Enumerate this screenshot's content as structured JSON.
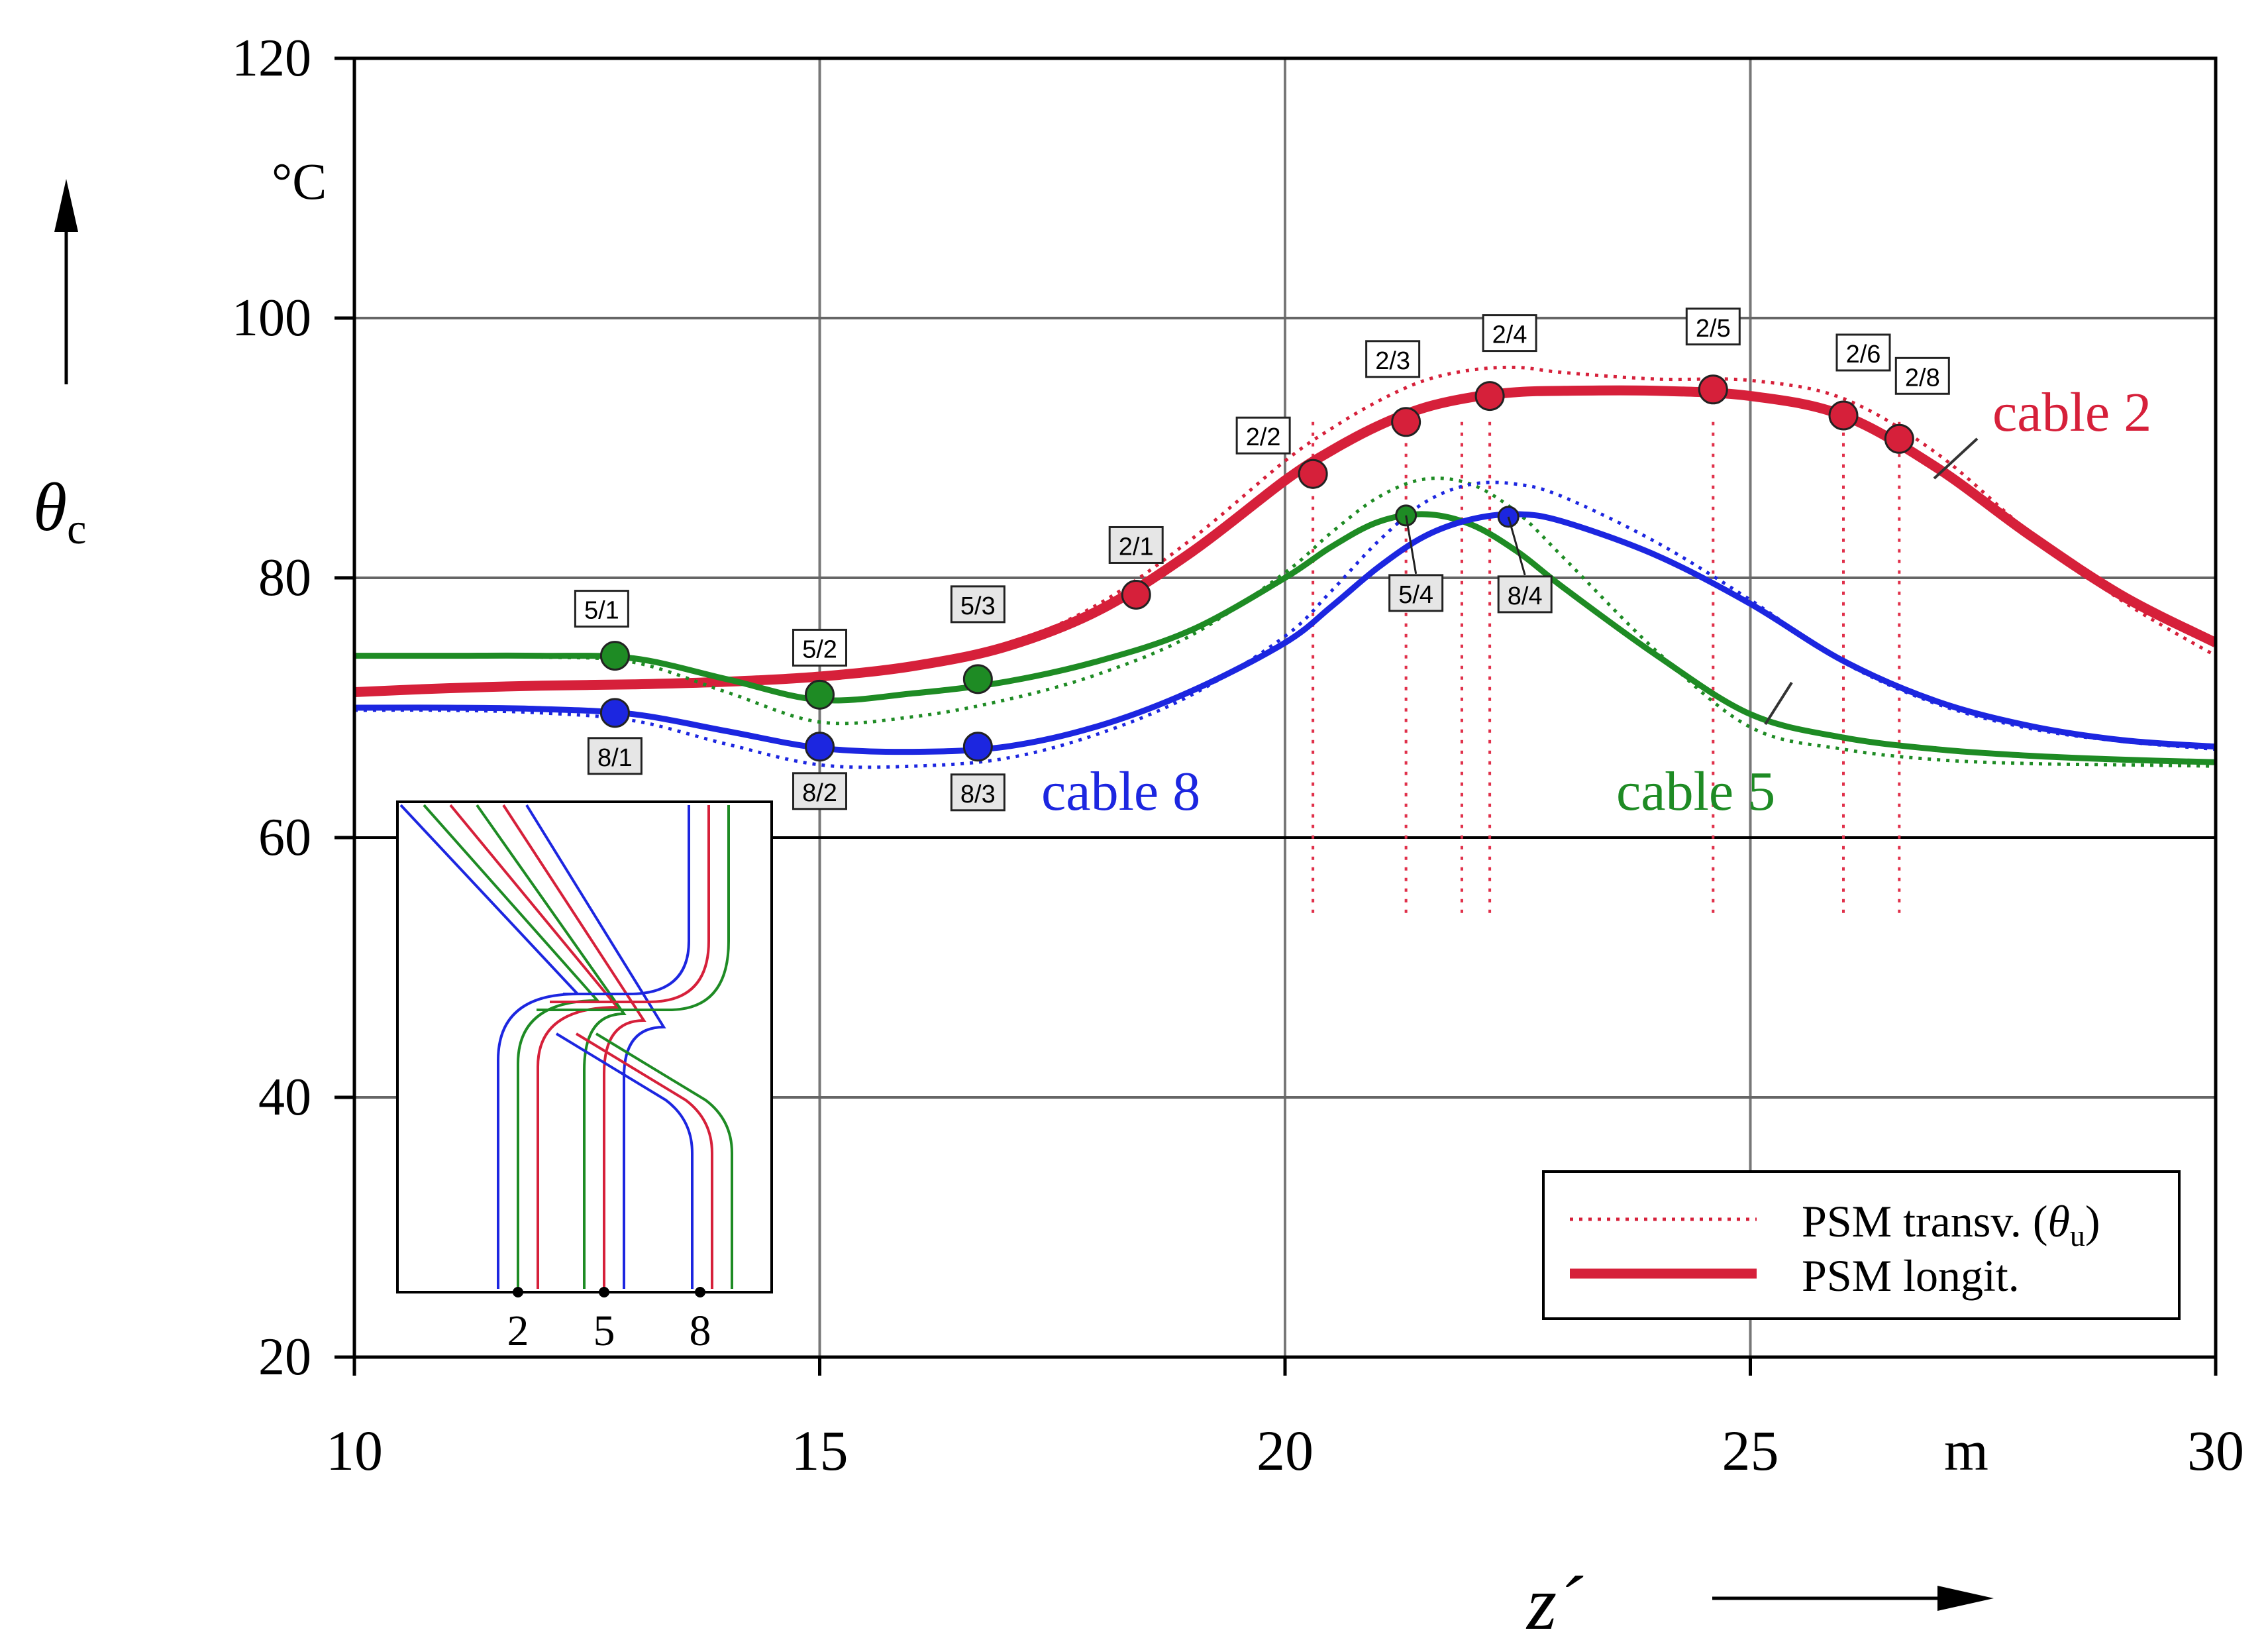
{
  "chart_data": {
    "type": "line",
    "x": [
      10,
      11,
      12,
      13,
      14,
      15,
      16,
      17,
      18,
      19,
      20,
      20.5,
      21,
      21.5,
      22,
      22.5,
      23,
      24,
      25,
      26,
      27,
      28,
      29,
      30
    ],
    "series": [
      {
        "name": "cable 2",
        "color": "#d6203a",
        "longit": [
          71.2,
          71.5,
          71.7,
          71.8,
          72.0,
          72.4,
          73.2,
          74.7,
          77.5,
          82.0,
          87.5,
          89.8,
          91.7,
          93.1,
          93.9,
          94.3,
          94.4,
          94.4,
          94.0,
          92.5,
          88.5,
          83.3,
          78.6,
          75.0
        ],
        "transv": [
          71.0,
          71.3,
          71.5,
          71.6,
          71.8,
          72.2,
          73.1,
          74.8,
          78.0,
          83.0,
          89.0,
          91.5,
          93.6,
          95.2,
          96.0,
          96.2,
          95.8,
          95.3,
          95.2,
          93.8,
          89.6,
          83.5,
          78.2,
          74.0
        ]
      },
      {
        "name": "cable 5",
        "color": "#1e8b24",
        "longit": [
          74.0,
          74.0,
          74.0,
          73.8,
          72.2,
          70.6,
          71.1,
          72.0,
          73.6,
          76.0,
          80.0,
          82.4,
          84.3,
          84.9,
          84.1,
          82.0,
          79.2,
          74.0,
          69.5,
          67.7,
          66.8,
          66.3,
          66.0,
          65.8
        ],
        "transv": [
          74.0,
          74.0,
          73.9,
          73.5,
          71.2,
          68.9,
          69.3,
          70.6,
          72.6,
          75.6,
          80.4,
          83.5,
          86.2,
          87.6,
          87.2,
          85.0,
          81.5,
          74.3,
          68.5,
          66.8,
          66.0,
          65.7,
          65.6,
          65.5
        ]
      },
      {
        "name": "cable 8",
        "color": "#1c26e0",
        "longit": [
          70.0,
          70.0,
          69.9,
          69.5,
          68.2,
          66.9,
          66.6,
          67.0,
          68.6,
          71.3,
          75.0,
          77.8,
          80.8,
          83.2,
          84.5,
          84.9,
          84.3,
          81.7,
          78.0,
          73.6,
          70.5,
          68.6,
          67.5,
          67.0
        ],
        "transv": [
          69.8,
          69.8,
          69.6,
          69.0,
          67.2,
          65.6,
          65.5,
          66.1,
          68.0,
          71.0,
          75.5,
          79.0,
          82.8,
          85.8,
          87.2,
          87.2,
          86.2,
          82.7,
          78.3,
          73.5,
          70.3,
          68.4,
          67.4,
          66.8
        ]
      }
    ],
    "markers": [
      {
        "label": "2/1",
        "series": 0,
        "x": 18.4,
        "y": 78.7
      },
      {
        "label": "2/2",
        "series": 0,
        "x": 20.3,
        "y": 88.0
      },
      {
        "label": "2/3",
        "series": 0,
        "x": 21.3,
        "y": 92.0
      },
      {
        "label": "2/4",
        "series": 0,
        "x": 22.2,
        "y": 94.0
      },
      {
        "label": "2/5",
        "series": 0,
        "x": 24.6,
        "y": 94.5
      },
      {
        "label": "2/6",
        "series": 0,
        "x": 26.0,
        "y": 92.5
      },
      {
        "label": "2/8",
        "series": 0,
        "x": 26.6,
        "y": 90.7
      },
      {
        "label": "5/1",
        "series": 1,
        "x": 12.8,
        "y": 74.0
      },
      {
        "label": "5/2",
        "series": 1,
        "x": 15.0,
        "y": 71.0
      },
      {
        "label": "5/3",
        "series": 1,
        "x": 16.7,
        "y": 72.2
      },
      {
        "label": "5/4",
        "series": 1,
        "x": 21.3,
        "y": 84.8
      },
      {
        "label": "8/1",
        "series": 2,
        "x": 12.8,
        "y": 69.6
      },
      {
        "label": "8/2",
        "series": 2,
        "x": 15.0,
        "y": 67.0
      },
      {
        "label": "8/3",
        "series": 2,
        "x": 16.7,
        "y": 67.0
      },
      {
        "label": "8/4",
        "series": 2,
        "x": 22.4,
        "y": 84.7
      }
    ],
    "vlines": [
      20.3,
      21.3,
      21.9,
      22.2,
      24.6,
      26.0,
      26.6
    ],
    "vline_range": [
      54,
      92
    ],
    "xlim": [
      10,
      30
    ],
    "ylim": [
      20,
      120
    ],
    "xticks": [
      "10",
      "15",
      "20",
      "25",
      "30"
    ],
    "yticks": [
      "20",
      "40",
      "60",
      "80",
      "100",
      "120"
    ],
    "x_unit": "m",
    "y_unit": "°C",
    "xlabel": "z´",
    "ylabel_main": "θ",
    "ylabel_sub": "c",
    "grid": true,
    "legend": {
      "position": "bottom-right",
      "transv_label": "PSM transv. (",
      "transv_theta": "θ",
      "transv_sub": "u",
      "transv_close": ")",
      "longit_label": "PSM longit."
    },
    "series_labels": [
      "cable 2",
      "cable 5",
      "cable 8"
    ],
    "inset": {
      "position": "bottom-left",
      "labels": [
        "2",
        "5",
        "8"
      ]
    }
  }
}
